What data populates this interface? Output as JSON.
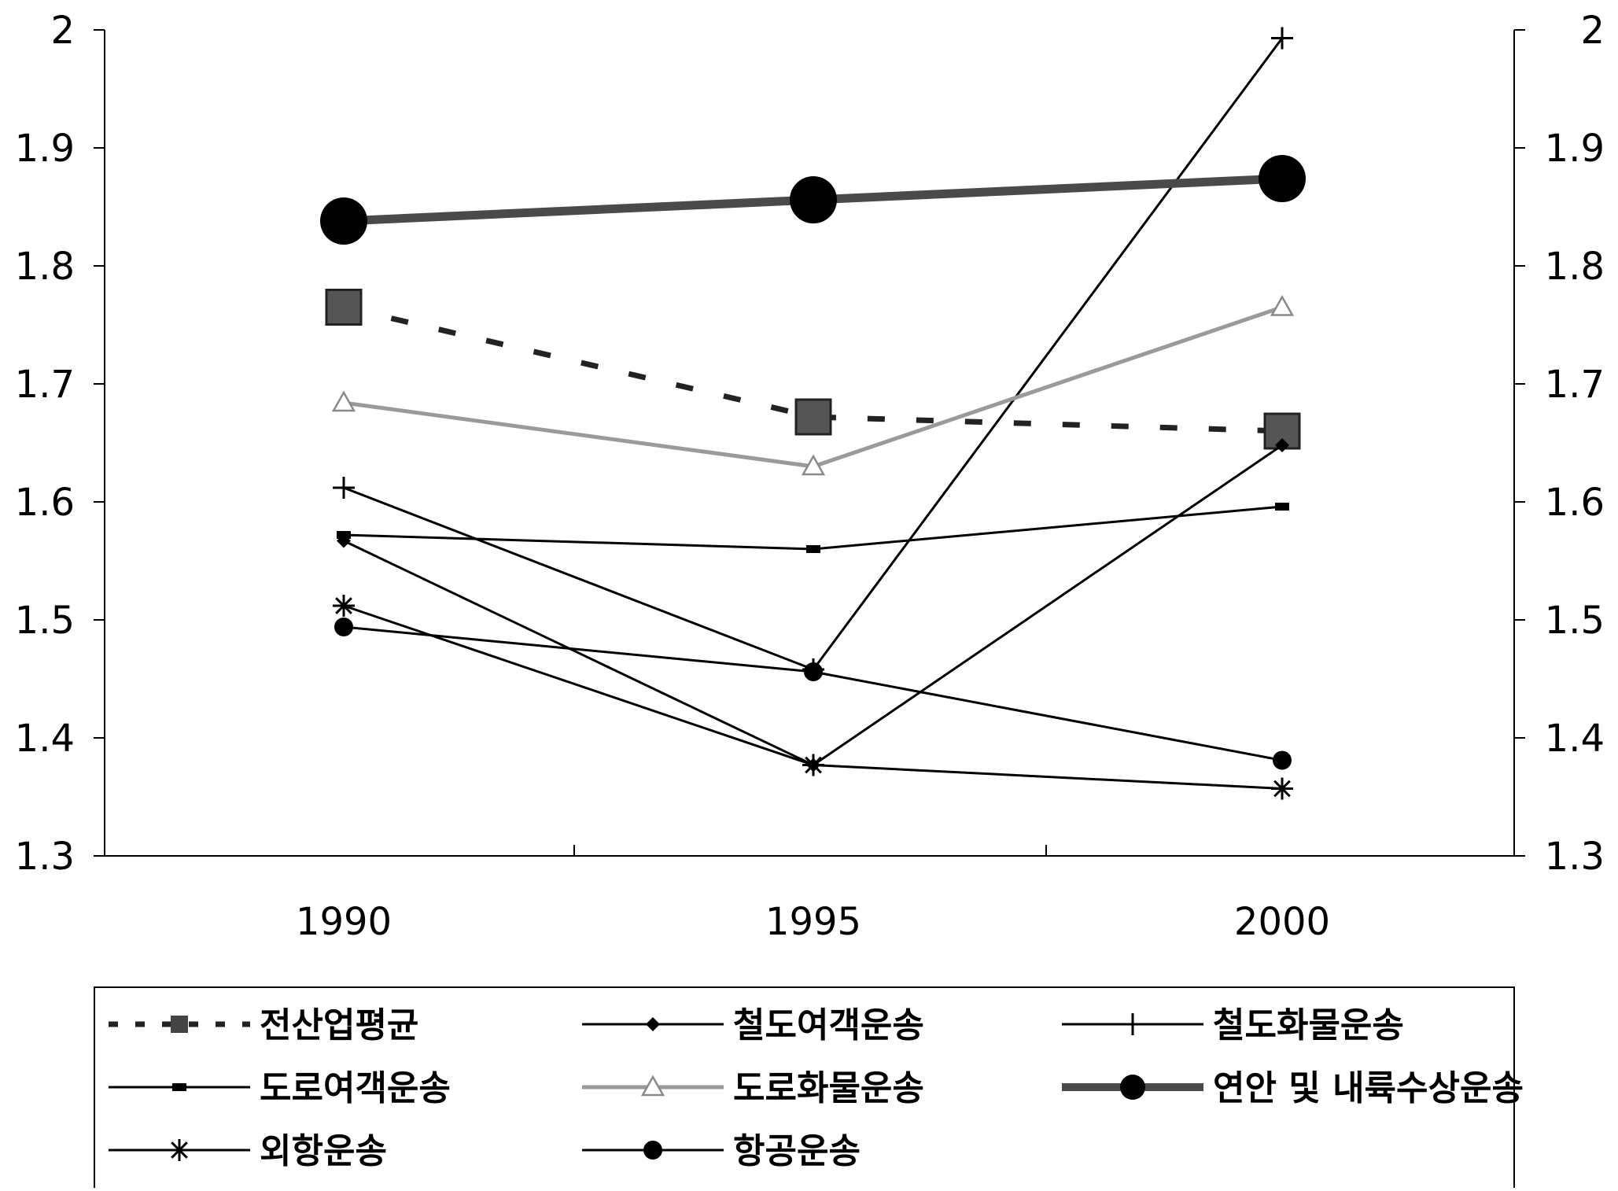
{
  "chart_data": {
    "type": "line",
    "title": "",
    "xlabel": "",
    "ylabel": "",
    "categories": [
      "1990",
      "1995",
      "2000"
    ],
    "ylim": [
      1.3,
      2.0
    ],
    "yticks": [
      "1.3",
      "1.4",
      "1.5",
      "1.6",
      "1.7",
      "1.8",
      "1.9",
      "2"
    ],
    "secondary_y_axis": true,
    "grid": false,
    "legend_position": "bottom",
    "series": [
      {
        "name": "전산업평균",
        "values": [
          1.765,
          1.672,
          1.66
        ],
        "marker": "square",
        "line": "dashed",
        "color": "#222222",
        "marker_color": "#555555"
      },
      {
        "name": "철도여객운송",
        "values": [
          1.567,
          1.377,
          1.648
        ],
        "marker": "diamond",
        "line": "solid",
        "color": "#000000"
      },
      {
        "name": "철도화물운송",
        "values": [
          1.612,
          1.458,
          1.993
        ],
        "marker": "plus",
        "line": "solid",
        "color": "#000000"
      },
      {
        "name": "도로여객운송",
        "values": [
          1.572,
          1.56,
          1.596
        ],
        "marker": "dash",
        "line": "solid",
        "color": "#000000"
      },
      {
        "name": "도로화물운송",
        "values": [
          1.684,
          1.63,
          1.765
        ],
        "marker": "triangle",
        "line": "solid",
        "color": "#9a9a9a"
      },
      {
        "name": "연안 및 내륙수상운송",
        "values": [
          1.838,
          1.856,
          1.874
        ],
        "marker": "big-circle",
        "line": "thick",
        "color": "#4a4a4a",
        "marker_color": "#000000"
      },
      {
        "name": "외항운송",
        "values": [
          1.512,
          1.377,
          1.357
        ],
        "marker": "star",
        "line": "solid",
        "color": "#000000"
      },
      {
        "name": "항공운송",
        "values": [
          1.494,
          1.456,
          1.381
        ],
        "marker": "circle",
        "line": "solid",
        "color": "#000000"
      }
    ]
  }
}
